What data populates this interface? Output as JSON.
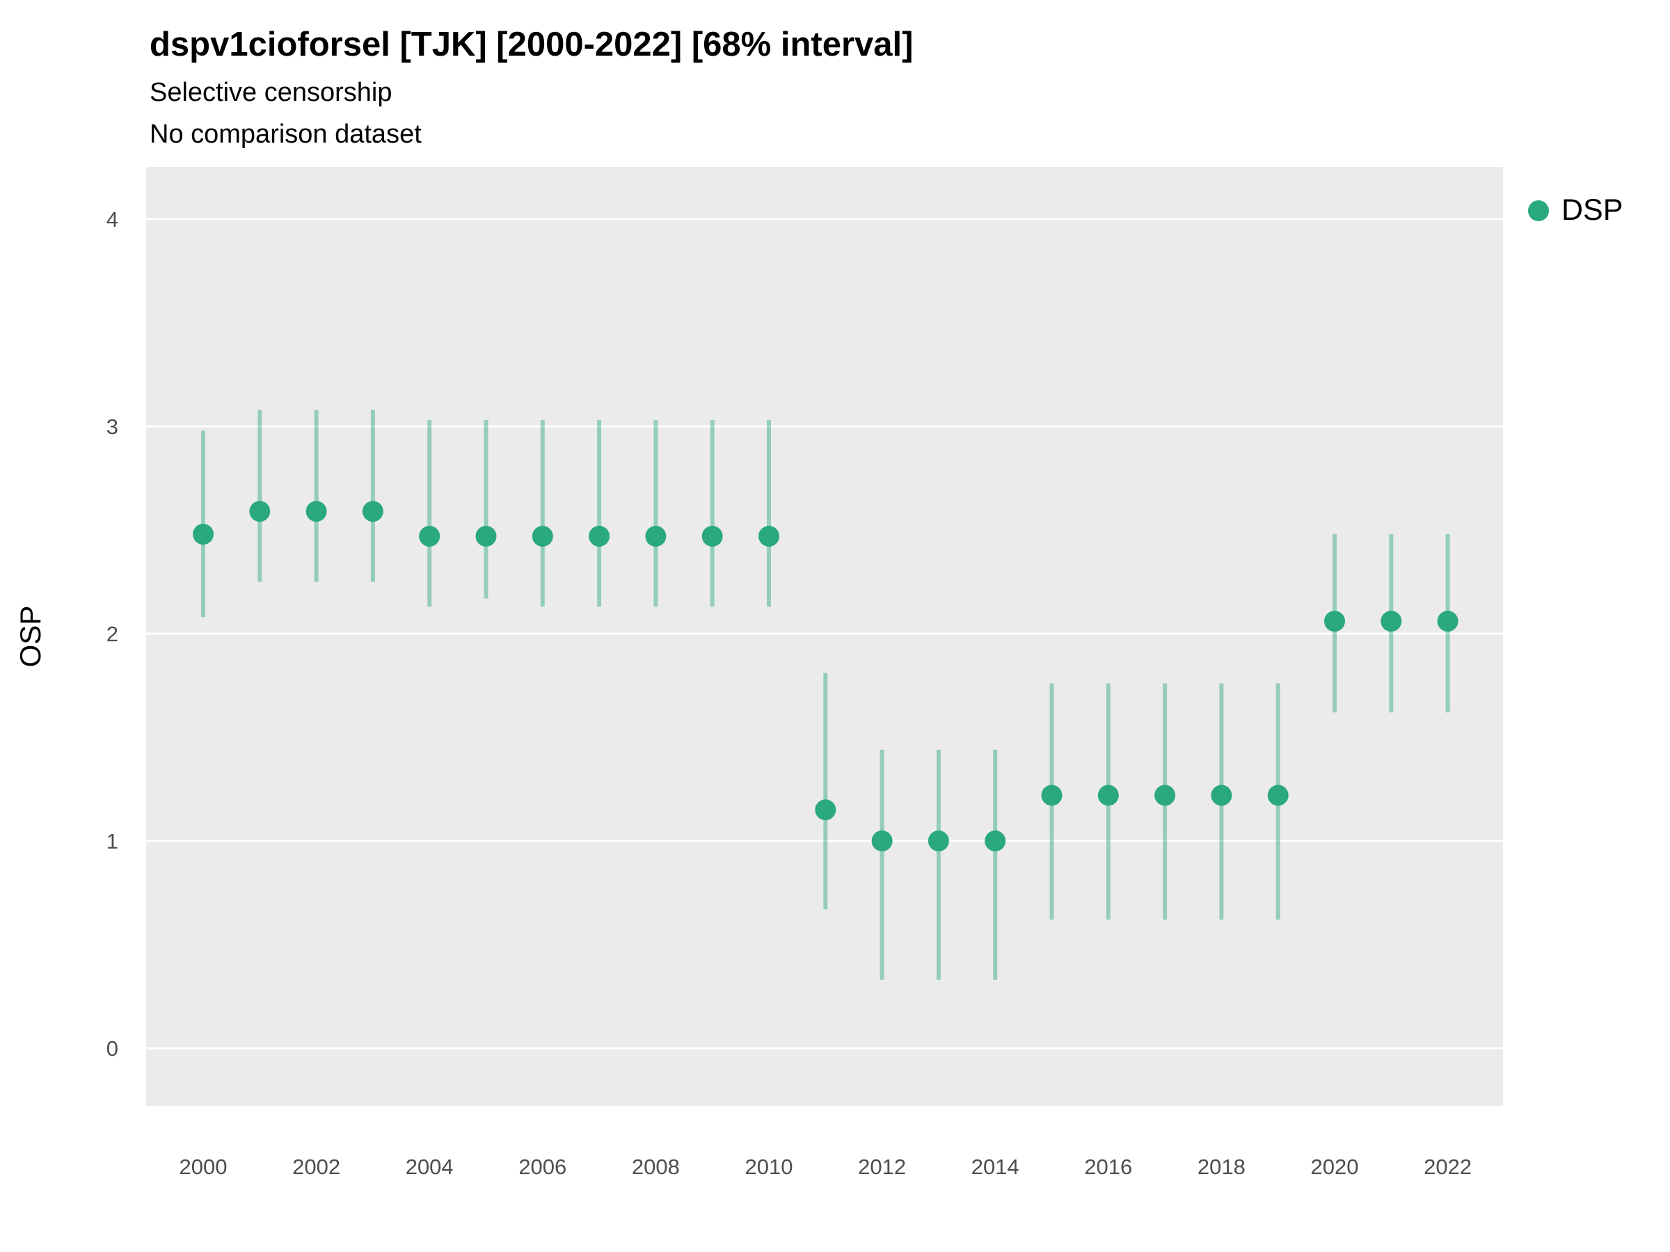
{
  "header": {
    "title": "dspv1cioforsel [TJK] [2000-2022] [68% interval]",
    "subtitle1": "Selective censorship",
    "subtitle2": "No comparison dataset"
  },
  "legend": {
    "items": [
      {
        "label": "DSP",
        "color": "#2aa87e"
      }
    ]
  },
  "colors": {
    "panel_background": "#ebebeb",
    "gridline": "#ffffff",
    "point": "#2aa87e",
    "interval_line": "#2aa87e",
    "interval_opacity": 0.45,
    "tick_label": "#4d4d4d",
    "axis_label": "#000000"
  },
  "chart_data": {
    "type": "scatter",
    "title": "dspv1cioforsel [TJK] [2000-2022] [68% interval]",
    "subtitle": "Selective censorship",
    "caption": "No comparison dataset",
    "xlabel": "",
    "ylabel": "OSP",
    "legend_position": "right",
    "grid": true,
    "ylim": [
      -0.28,
      4.25
    ],
    "yticks": [
      0,
      1,
      2,
      3,
      4
    ],
    "xticks": [
      2000,
      2002,
      2004,
      2006,
      2008,
      2010,
      2012,
      2014,
      2016,
      2018,
      2020,
      2022
    ],
    "x": [
      2000,
      2001,
      2002,
      2003,
      2004,
      2005,
      2006,
      2007,
      2008,
      2009,
      2010,
      2011,
      2012,
      2013,
      2014,
      2015,
      2016,
      2017,
      2018,
      2019,
      2020,
      2021,
      2022
    ],
    "series": [
      {
        "name": "DSP",
        "values": [
          2.48,
          2.59,
          2.59,
          2.59,
          2.47,
          2.47,
          2.47,
          2.47,
          2.47,
          2.47,
          2.47,
          1.15,
          1.0,
          1.0,
          1.0,
          1.22,
          1.22,
          1.22,
          1.22,
          1.22,
          2.06,
          2.06,
          2.06
        ],
        "lower": [
          2.08,
          2.25,
          2.25,
          2.25,
          2.13,
          2.17,
          2.13,
          2.13,
          2.13,
          2.13,
          2.13,
          0.67,
          0.33,
          0.33,
          0.33,
          0.62,
          0.62,
          0.62,
          0.62,
          0.62,
          1.62,
          1.62,
          1.62
        ],
        "upper": [
          2.98,
          3.08,
          3.08,
          3.08,
          3.03,
          3.03,
          3.03,
          3.03,
          3.03,
          3.03,
          3.03,
          1.81,
          1.44,
          1.44,
          1.44,
          1.76,
          1.76,
          1.76,
          1.76,
          1.76,
          2.48,
          2.48,
          2.48
        ],
        "interval": "68%"
      }
    ]
  }
}
